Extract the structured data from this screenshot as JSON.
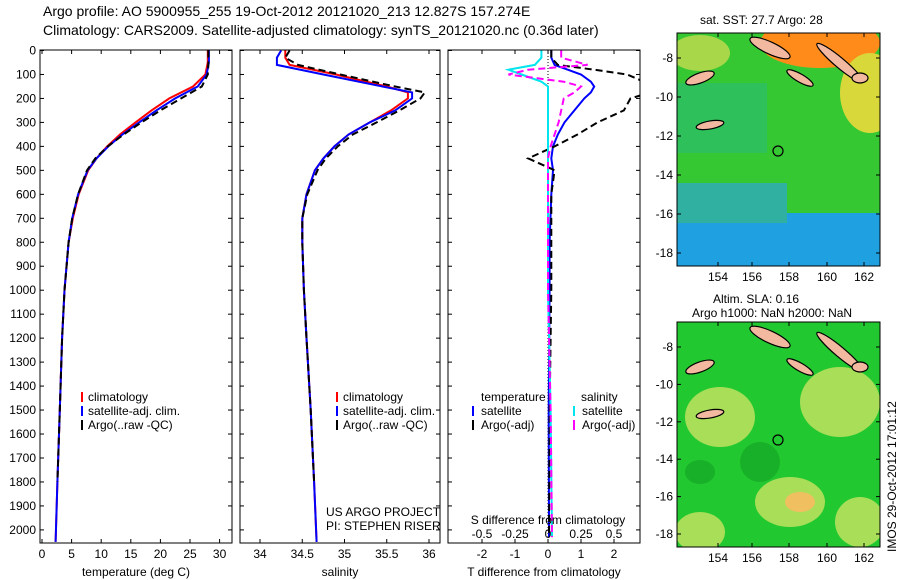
{
  "title_line1": "Argo profile: AO 5900955_255 19-Oct-2012 20121020_213 12.827S 157.274E",
  "title_line2": "Climatology: CARS2009. Satellite-adjusted climatology: synTS_20121020.nc (0.36d later)",
  "colors": {
    "climatology": "#ff0000",
    "satellite": "#0000ff",
    "argo": "#000000",
    "sal_satellite": "#00e5ee",
    "sal_argo": "#ff00ff"
  },
  "chart_data": [
    {
      "type": "line",
      "xlabel": "temperature (deg C)",
      "ylabel": "depth",
      "xlim": [
        -2,
        31
      ],
      "ylim": [
        2060,
        0
      ],
      "xticks": [
        "0",
        "5",
        "10",
        "15",
        "20",
        "25",
        "30"
      ],
      "yticks": [
        "0",
        "100",
        "200",
        "300",
        "400",
        "500",
        "600",
        "700",
        "800",
        "900",
        "1000",
        "1100",
        "1200",
        "1300",
        "1400",
        "1500",
        "1600",
        "1700",
        "1800",
        "1900",
        "2000"
      ],
      "legend": [
        "climatology",
        "satellite-adj. clim.",
        "Argo(..raw -QC)"
      ],
      "depth": [
        0,
        50,
        100,
        150,
        200,
        250,
        300,
        350,
        400,
        450,
        500,
        600,
        700,
        800,
        1000,
        1200,
        1500,
        1800,
        2050
      ],
      "series": [
        {
          "name": "climatology",
          "values": [
            28,
            28,
            27.6,
            25.5,
            21.5,
            18.5,
            15.8,
            13.2,
            11,
            9.2,
            7.8,
            6.2,
            5.2,
            4.5,
            3.8,
            3.4,
            3,
            2.6,
            2.3
          ]
        },
        {
          "name": "satellite-adj. clim.",
          "values": [
            28.2,
            28.2,
            27.8,
            26.3,
            22.5,
            19.3,
            16.4,
            13.6,
            11.2,
            9.2,
            7.7,
            6.1,
            5.1,
            4.5,
            3.8,
            3.4,
            3,
            2.6,
            2.3
          ]
        },
        {
          "name": "Argo(..raw -QC)",
          "values": [
            28.1,
            28.1,
            28,
            27,
            23.5,
            20,
            16.8,
            13.8,
            11.1,
            9,
            7.6,
            6.1,
            5.1,
            4.5,
            3.8,
            3.4,
            3,
            2.6,
            null
          ]
        }
      ]
    },
    {
      "type": "line",
      "xlabel": "salinity",
      "ylabel": "depth",
      "xlim": [
        33.7,
        36.1
      ],
      "ylim": [
        2060,
        0
      ],
      "xticks": [
        "34",
        "34.5",
        "35",
        "35.5",
        "36"
      ],
      "legend": [
        "climatology",
        "satellite-adj. clim.",
        "Argo(..raw -QC)"
      ],
      "annotation": [
        "US ARGO PROJECT",
        "PI: STEPHEN RISER"
      ],
      "depth": [
        0,
        30,
        60,
        100,
        150,
        175,
        200,
        250,
        300,
        350,
        400,
        450,
        500,
        600,
        700,
        800,
        1000,
        1200,
        1500,
        1800,
        2050
      ],
      "series": [
        {
          "name": "climatology",
          "values": [
            34.3,
            34.3,
            34.35,
            34.9,
            35.5,
            35.75,
            35.75,
            35.55,
            35.3,
            35.05,
            34.88,
            34.75,
            34.65,
            34.55,
            34.5,
            34.5,
            34.52,
            34.55,
            34.6,
            34.64,
            34.67
          ]
        },
        {
          "name": "satellite-adj. clim.",
          "values": [
            34.25,
            34.2,
            34.2,
            34.75,
            35.45,
            35.8,
            35.8,
            35.6,
            35.3,
            35.05,
            34.88,
            34.75,
            34.65,
            34.55,
            34.5,
            34.5,
            34.52,
            34.55,
            34.6,
            34.64,
            34.67
          ]
        },
        {
          "name": "Argo(..raw -QC)",
          "values": [
            34.35,
            34.3,
            34.45,
            34.95,
            35.6,
            35.95,
            35.9,
            35.65,
            35.38,
            35.1,
            34.92,
            34.78,
            34.68,
            34.56,
            34.5,
            34.5,
            34.52,
            34.55,
            34.6,
            34.64,
            null
          ]
        }
      ]
    },
    {
      "type": "line",
      "xlabel": "T difference from climatology",
      "x2label": "S difference from climatology",
      "xlim": [
        -3,
        3
      ],
      "ylim": [
        2060,
        0
      ],
      "xticks": [
        "-2",
        "-1",
        "0",
        "1",
        "2"
      ],
      "x2ticks": [
        "-0.5",
        "-0.25",
        "0",
        "0.25",
        "0.5"
      ],
      "legend_headers": [
        "temperature",
        "salinity"
      ],
      "legend": [
        "satellite",
        "Argo(-adj)",
        "satellite",
        "Argo(-adj)"
      ],
      "depth": [
        0,
        30,
        60,
        80,
        100,
        130,
        150,
        175,
        200,
        250,
        300,
        350,
        400,
        450,
        500,
        600,
        800,
        1000
      ],
      "series": [
        {
          "name": "T satellite",
          "values": [
            0.1,
            0.1,
            0.2,
            0.6,
            1.0,
            1.3,
            1.4,
            1.3,
            1.1,
            0.8,
            0.5,
            0.3,
            0.15,
            0.1,
            0.15,
            0.1,
            0.05,
            0.05
          ]
        },
        {
          "name": "T Argo(-adj)",
          "values": [
            0.1,
            0.1,
            0.3,
            1.4,
            2.4,
            2.9,
            3.2,
            3.1,
            2.5,
            2.3,
            1.5,
            0.9,
            0.2,
            -0.6,
            0.2,
            0.1,
            0.1,
            0.1
          ]
        },
        {
          "name": "S satellite",
          "values": [
            -0.05,
            -0.05,
            -0.1,
            -0.3,
            -0.2,
            -0.05,
            0,
            0,
            0,
            0,
            0,
            0,
            0,
            0,
            0,
            0,
            0,
            0
          ]
        },
        {
          "name": "S Argo(-adj)",
          "values": [
            0.1,
            0.1,
            0.3,
            -0.15,
            -0.3,
            0.12,
            0.25,
            0.2,
            0.12,
            0.1,
            0.08,
            0.05,
            0.02,
            0,
            0,
            0,
            0,
            0
          ]
        }
      ]
    }
  ],
  "map1": {
    "title": "sat. SST: 27.7 Argo: 28",
    "lon_ticks": [
      "154",
      "156",
      "158",
      "160",
      "162"
    ],
    "lat_ticks": [
      "-8",
      "-10",
      "-12",
      "-14",
      "-16",
      "-18"
    ]
  },
  "map2": {
    "title1": "Altim. SLA: 0.16",
    "title2": "Argo h1000: NaN h2000: NaN",
    "lon_ticks": [
      "154",
      "156",
      "158",
      "160",
      "162"
    ],
    "lat_ticks": [
      "-8",
      "-10",
      "-12",
      "-14",
      "-16",
      "-18"
    ]
  },
  "side_label": "IMOS 29-Oct-2012 17:01:12"
}
